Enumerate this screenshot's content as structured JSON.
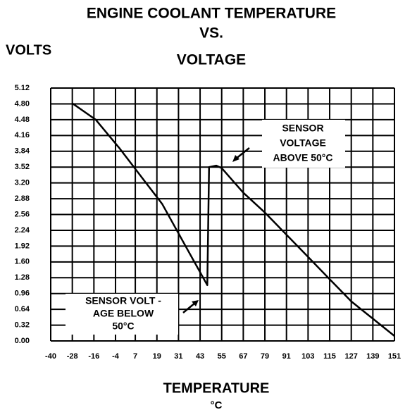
{
  "chart_data": {
    "type": "line",
    "title": [
      "ENGINE COOLANT TEMPERATURE",
      "VS.",
      "VOLTAGE"
    ],
    "ylabel": "VOLTS",
    "xlabel": [
      "TEMPERATURE",
      "°C"
    ],
    "x": [
      -28,
      -15,
      -2,
      10,
      22,
      34,
      47,
      48,
      52,
      55,
      67,
      79,
      91,
      103,
      115,
      127,
      139,
      151
    ],
    "series": [
      {
        "color": "#000000",
        "values": [
          4.81,
          4.48,
          3.91,
          3.34,
          2.77,
          1.98,
          1.13,
          3.52,
          3.55,
          3.5,
          3.0,
          2.6,
          2.15,
          1.7,
          1.25,
          0.8,
          0.45,
          0.1
        ]
      }
    ],
    "xlim": [
      -40,
      151
    ],
    "xticks": [
      -40,
      -28,
      -16,
      -4,
      7,
      19,
      31,
      43,
      55,
      67,
      79,
      91,
      103,
      115,
      127,
      139,
      151
    ],
    "ylim": [
      0,
      5.12
    ],
    "yticks": [
      {
        "value": 0,
        "label": "0.00"
      },
      0.32,
      0.64,
      0.96,
      1.28,
      {
        "value": 1.6,
        "label": "1.60"
      },
      1.92,
      2.24,
      2.56,
      2.88,
      {
        "value": 3.2,
        "label": "3.20"
      },
      3.52,
      3.84,
      4.16,
      4.48,
      {
        "value": 4.8,
        "label": "4.80"
      },
      5.12
    ],
    "grid": true,
    "annotations": [
      {
        "lines": [
          "SENSOR",
          "VOLTAGE",
          "ABOVE 50°C"
        ]
      },
      {
        "lines": [
          "SENSOR VOLT -",
          "AGE BELOW",
          "50°C"
        ]
      }
    ]
  }
}
